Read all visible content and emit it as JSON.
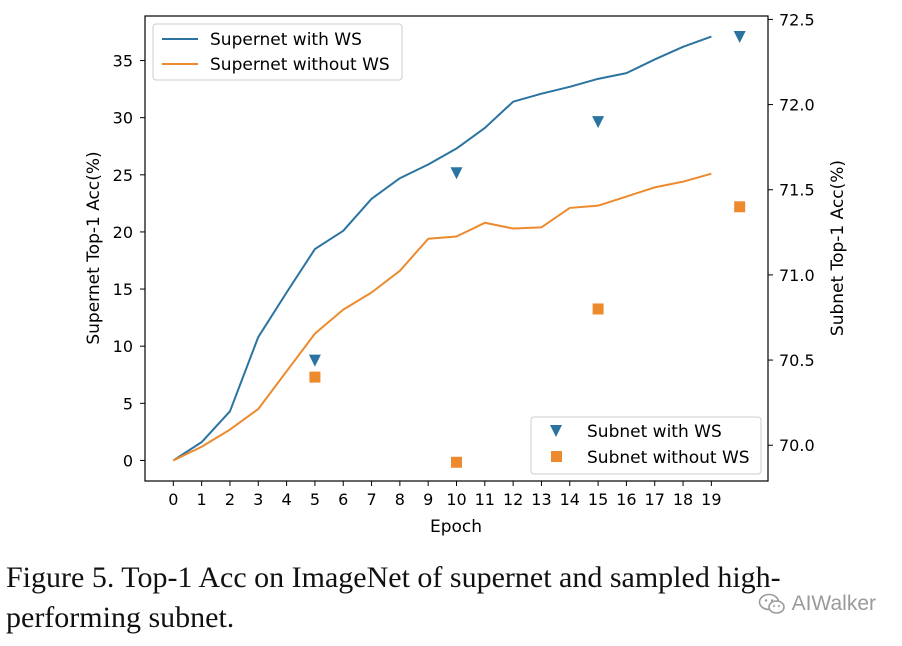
{
  "chart_data": {
    "type": "line",
    "xlabel": "Epoch",
    "ylabel_left": "Supernet Top-1 Acc(%)",
    "ylabel_right": "Subnet Top-1 Acc(%)",
    "x_ticks": [
      "0",
      "1",
      "2",
      "3",
      "4",
      "5",
      "6",
      "7",
      "8",
      "9",
      "10",
      "11",
      "12",
      "13",
      "14",
      "15",
      "16",
      "17",
      "18",
      "19"
    ],
    "y_left_ticks": [
      "0",
      "5",
      "10",
      "15",
      "20",
      "25",
      "30",
      "35"
    ],
    "y_left_tick_values": [
      0,
      5,
      10,
      15,
      20,
      25,
      30,
      35
    ],
    "y_left_lim": [
      -1.8,
      38.9
    ],
    "y_right_ticks": [
      "70.0",
      "70.5",
      "71.0",
      "71.5",
      "72.0",
      "72.5"
    ],
    "y_right_tick_values": [
      70.0,
      70.5,
      71.0,
      71.5,
      72.0,
      72.5
    ],
    "y_right_lim": [
      69.79,
      72.52
    ],
    "x_lim": [
      -1.0,
      21.0
    ],
    "series": [
      {
        "name": "Supernet with WS",
        "axis": "left",
        "kind": "line",
        "color": "#2b73a0",
        "x": [
          0,
          1,
          2,
          3,
          4,
          5,
          6,
          7,
          8,
          9,
          10,
          11,
          12,
          13,
          14,
          15,
          16,
          17,
          18,
          19
        ],
        "values": [
          0.0,
          1.6,
          4.3,
          10.8,
          14.7,
          18.5,
          20.1,
          22.9,
          24.7,
          25.9,
          27.3,
          29.1,
          31.4,
          32.1,
          32.7,
          33.4,
          33.9,
          35.1,
          36.2,
          37.1
        ]
      },
      {
        "name": "Supernet without WS",
        "axis": "left",
        "kind": "line",
        "color": "#ed8a2e",
        "x": [
          0,
          1,
          2,
          3,
          4,
          5,
          6,
          7,
          8,
          9,
          10,
          11,
          12,
          13,
          14,
          15,
          16,
          17,
          18,
          19
        ],
        "values": [
          0.0,
          1.2,
          2.7,
          4.5,
          7.8,
          11.1,
          13.2,
          14.7,
          16.6,
          19.4,
          19.6,
          20.8,
          20.3,
          20.4,
          22.1,
          22.3,
          23.1,
          23.9,
          24.4,
          25.1
        ]
      },
      {
        "name": "Subnet with WS",
        "axis": "right",
        "kind": "scatter",
        "marker": "triangle-down",
        "color": "#2b73a0",
        "x": [
          5,
          10,
          15,
          20
        ],
        "values": [
          70.5,
          71.6,
          71.9,
          72.4
        ]
      },
      {
        "name": "Subnet without WS",
        "axis": "right",
        "kind": "scatter",
        "marker": "square",
        "color": "#ed8a2e",
        "x": [
          5,
          10,
          15,
          20
        ],
        "values": [
          70.4,
          69.9,
          70.8,
          71.4
        ]
      }
    ],
    "legend_upper_left": [
      "Supernet with WS",
      "Supernet without WS"
    ],
    "legend_lower_right": [
      "Subnet with WS",
      "Subnet without WS"
    ]
  },
  "caption": "Figure 5. Top-1 Acc on ImageNet of supernet and sampled high-performing subnet.",
  "watermark": "AIWalker"
}
